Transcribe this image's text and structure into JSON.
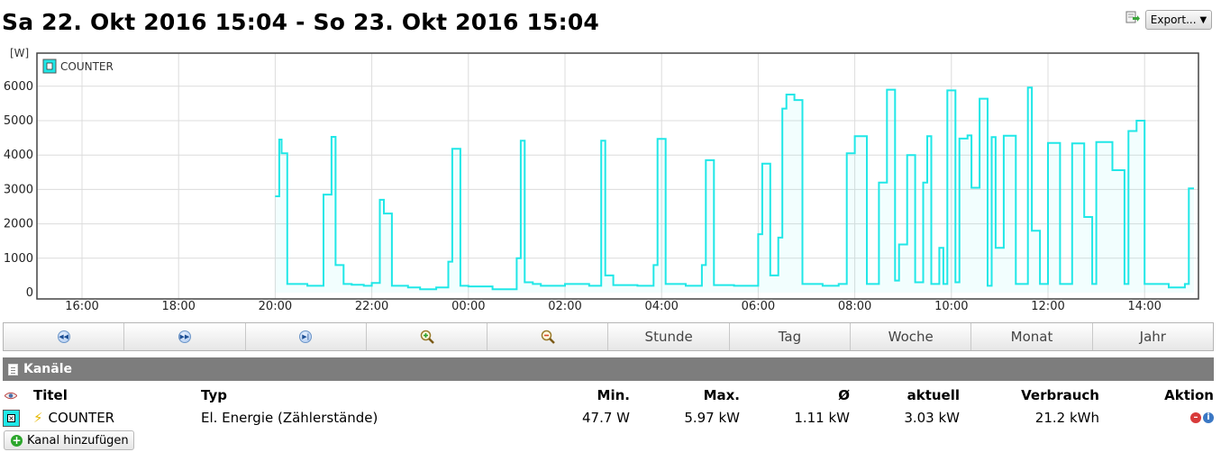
{
  "header": {
    "title": "Sa 22. Okt 2016 15:04 - So 23. Okt 2016 15:04",
    "export_label": "Export...",
    "export_icon": "export-icon"
  },
  "chart_data": {
    "type": "line",
    "ylabel": "[W]",
    "ylim": [
      0,
      6500
    ],
    "yticks": [
      0,
      1000,
      2000,
      3000,
      4000,
      5000,
      6000
    ],
    "xticks": [
      "16:00",
      "18:00",
      "20:00",
      "22:00",
      "00:00",
      "02:00",
      "04:00",
      "06:00",
      "08:00",
      "10:00",
      "12:00",
      "14:00"
    ],
    "grid": true,
    "legend_position": "top-left",
    "series": [
      {
        "name": "COUNTER",
        "color": "#20e7e7",
        "x": [
          "20:00",
          "20:05",
          "20:08",
          "20:15",
          "20:20",
          "20:40",
          "21:00",
          "21:10",
          "21:15",
          "21:25",
          "21:35",
          "21:50",
          "22:00",
          "22:10",
          "22:15",
          "22:25",
          "22:45",
          "23:00",
          "23:20",
          "23:35",
          "23:40",
          "23:50",
          "00:00",
          "00:30",
          "01:00",
          "01:05",
          "01:10",
          "01:20",
          "01:30",
          "02:00",
          "02:30",
          "02:45",
          "02:50",
          "03:00",
          "03:30",
          "03:50",
          "03:55",
          "04:05",
          "04:30",
          "04:50",
          "04:55",
          "05:05",
          "05:30",
          "05:55",
          "06:00",
          "06:05",
          "06:15",
          "06:25",
          "06:30",
          "06:35",
          "06:45",
          "06:55",
          "07:00",
          "07:20",
          "07:40",
          "07:50",
          "08:00",
          "08:15",
          "08:25",
          "08:30",
          "08:40",
          "08:50",
          "08:55",
          "09:05",
          "09:15",
          "09:25",
          "09:30",
          "09:35",
          "09:45",
          "09:50",
          "09:55",
          "10:05",
          "10:10",
          "10:20",
          "10:25",
          "10:35",
          "10:45",
          "10:50",
          "10:55",
          "11:05",
          "11:20",
          "11:35",
          "11:40",
          "11:50",
          "12:00",
          "12:15",
          "12:30",
          "12:45",
          "12:55",
          "13:00",
          "13:20",
          "13:35",
          "13:40",
          "13:50",
          "14:00",
          "14:20",
          "14:30",
          "14:50",
          "14:55"
        ],
        "values": [
          2800,
          4450,
          4050,
          250,
          250,
          200,
          2850,
          4530,
          800,
          250,
          230,
          200,
          280,
          2700,
          2300,
          200,
          150,
          100,
          150,
          900,
          4180,
          200,
          180,
          100,
          1000,
          4420,
          300,
          250,
          200,
          250,
          200,
          4420,
          500,
          220,
          200,
          800,
          4470,
          250,
          200,
          800,
          3850,
          220,
          200,
          200,
          1700,
          3750,
          500,
          1600,
          5350,
          5760,
          5600,
          250,
          250,
          200,
          250,
          4050,
          4550,
          250,
          250,
          3200,
          5900,
          350,
          1400,
          4000,
          300,
          3200,
          4550,
          250,
          1300,
          250,
          5880,
          300,
          4480,
          4570,
          3050,
          5640,
          200,
          4520,
          1300,
          4560,
          250,
          5960,
          1800,
          250,
          4350,
          250,
          4340,
          2200,
          250,
          4380,
          3560,
          250,
          4700,
          5000,
          250,
          250,
          150,
          250,
          3030
        ]
      }
    ]
  },
  "toolbar": {
    "items": [
      {
        "name": "nav-back-button",
        "icon": "rewind-icon",
        "label": ""
      },
      {
        "name": "nav-forward-button",
        "icon": "fast-forward-icon",
        "label": ""
      },
      {
        "name": "nav-end-button",
        "icon": "skip-end-icon",
        "label": ""
      },
      {
        "name": "zoom-in-button",
        "icon": "zoom-in-icon",
        "label": ""
      },
      {
        "name": "zoom-out-button",
        "icon": "zoom-out-icon",
        "label": ""
      },
      {
        "name": "range-hour-button",
        "icon": "",
        "label": "Stunde"
      },
      {
        "name": "range-day-button",
        "icon": "",
        "label": "Tag"
      },
      {
        "name": "range-week-button",
        "icon": "",
        "label": "Woche"
      },
      {
        "name": "range-month-button",
        "icon": "",
        "label": "Monat"
      },
      {
        "name": "range-year-button",
        "icon": "",
        "label": "Jahr"
      }
    ]
  },
  "channels": {
    "title": "Kanäle",
    "columns": {
      "title": "Titel",
      "type": "Typ",
      "min": "Min.",
      "max": "Max.",
      "avg": "Ø",
      "current": "aktuell",
      "consumption": "Verbrauch",
      "action": "Aktion"
    },
    "rows": [
      {
        "title": "COUNTER",
        "type": "El. Energie (Zählerstände)",
        "min": "47.7 W",
        "max": "5.97 kW",
        "avg": "1.11 kW",
        "current": "3.03 kW",
        "consumption": "21.2 kWh",
        "color": "#20e7e7"
      }
    ],
    "add_label": "Kanal hinzufügen"
  }
}
